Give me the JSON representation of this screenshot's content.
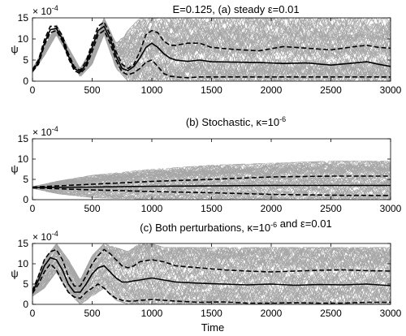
{
  "figure": {
    "xlabel": "Time",
    "colors": {
      "ensemble": "#a6a6a6",
      "mean": "#000000",
      "band": "#000000",
      "axes": "#000000"
    }
  },
  "chart_data": [
    {
      "type": "line",
      "title": "E=0.125, (a) steady ε=0.01",
      "ylabel": "ψ",
      "y_exponent": "× 10^-4",
      "xlim": [
        0,
        3000
      ],
      "ylim": [
        0,
        15
      ],
      "xticks": [
        0,
        500,
        1000,
        1500,
        2000,
        2500,
        3000
      ],
      "yticks": [
        0,
        5,
        10,
        15
      ],
      "ensemble_range": {
        "x": [
          0,
          100,
          200,
          300,
          400,
          500,
          600,
          700,
          800,
          900,
          1000,
          1100,
          1200,
          1300,
          1400,
          1500,
          1700,
          2000,
          2200,
          2500,
          2800,
          3000
        ],
        "low": [
          2,
          6,
          11,
          6,
          1,
          4,
          11,
          3,
          0,
          0,
          0,
          0,
          0,
          0,
          0,
          0,
          0,
          0,
          0,
          0,
          0,
          0
        ],
        "high": [
          3,
          8,
          13.5,
          8,
          3,
          8,
          15,
          9,
          12,
          15,
          15,
          15,
          15,
          15,
          15,
          15,
          15,
          15,
          15,
          15,
          15,
          15
        ]
      },
      "series": [
        {
          "role": "mean",
          "x": [
            0,
            50,
            100,
            150,
            200,
            250,
            300,
            350,
            400,
            450,
            500,
            550,
            600,
            650,
            700,
            750,
            800,
            850,
            900,
            950,
            1000,
            1050,
            1100,
            1150,
            1200,
            1300,
            1400,
            1500,
            1700,
            1900,
            2100,
            2300,
            2500,
            2700,
            2800,
            2900,
            3000
          ],
          "y": [
            2.5,
            4.5,
            9,
            12.2,
            12.5,
            10,
            6,
            3,
            2.2,
            4,
            8,
            12,
            13,
            10,
            6,
            3,
            2.5,
            3.5,
            5.5,
            8,
            9,
            8,
            6.5,
            5.5,
            5,
            4.7,
            5,
            4.6,
            4.5,
            4.4,
            4.2,
            4.3,
            3.8,
            4.3,
            4.6,
            4,
            3.5
          ]
        },
        {
          "role": "upper",
          "x": [
            0,
            50,
            100,
            150,
            200,
            250,
            300,
            350,
            400,
            450,
            500,
            550,
            600,
            650,
            700,
            750,
            800,
            850,
            900,
            950,
            1000,
            1050,
            1100,
            1150,
            1200,
            1300,
            1400,
            1500,
            1700,
            1900,
            2100,
            2300,
            2500,
            2700,
            2800,
            2900,
            3000
          ],
          "y": [
            2.7,
            5,
            9.8,
            13,
            13,
            10.8,
            6.6,
            3.4,
            2.6,
            4.7,
            9,
            13,
            14,
            11,
            7,
            4,
            3,
            4,
            7,
            11,
            12,
            11.5,
            9.5,
            8.5,
            8.5,
            9,
            9,
            8,
            7.5,
            7.2,
            8.2,
            7.8,
            7.4,
            8.2,
            8.5,
            8,
            7.8
          ]
        },
        {
          "role": "lower",
          "x": [
            0,
            50,
            100,
            150,
            200,
            250,
            300,
            350,
            400,
            450,
            500,
            550,
            600,
            650,
            700,
            750,
            800,
            850,
            900,
            950,
            1000,
            1050,
            1100,
            1150,
            1200,
            1300,
            1400,
            1500,
            1700,
            1900,
            2100,
            2300,
            2500,
            2700,
            2800,
            2900,
            3000
          ],
          "y": [
            2.3,
            4,
            8.5,
            11.5,
            12,
            9.5,
            5.5,
            2.5,
            1.8,
            3.3,
            7,
            11,
            12,
            9,
            5,
            2.2,
            1.5,
            2,
            3,
            4.5,
            5,
            3.5,
            1.8,
            1.2,
            1,
            0.8,
            1,
            1,
            1,
            1,
            1,
            1,
            1,
            1,
            1,
            1,
            1
          ]
        }
      ]
    },
    {
      "type": "line",
      "title": "(b) Stochastic, κ=10^-6",
      "ylabel": "ψ",
      "y_exponent": "× 10^-4",
      "xlim": [
        0,
        3000
      ],
      "ylim": [
        0,
        15
      ],
      "xticks": [
        0,
        500,
        1000,
        1500,
        2000,
        2500,
        3000
      ],
      "yticks": [
        0,
        5,
        10,
        15
      ],
      "ensemble_range": {
        "x": [
          0,
          200,
          500,
          1000,
          1500,
          2000,
          2500,
          3000
        ],
        "low": [
          2.8,
          1.5,
          0.5,
          0,
          0,
          0,
          0,
          0
        ],
        "high": [
          3.2,
          4.5,
          6,
          7.5,
          8.5,
          9,
          9.5,
          9.5
        ]
      },
      "series": [
        {
          "role": "mean",
          "x": [
            0,
            500,
            1000,
            1500,
            2000,
            2500,
            3000
          ],
          "y": [
            3,
            3.1,
            3.3,
            3.4,
            3.5,
            3.5,
            3.5
          ]
        },
        {
          "role": "upper",
          "x": [
            0,
            500,
            1000,
            1500,
            2000,
            2500,
            3000
          ],
          "y": [
            3.1,
            3.8,
            4.5,
            5,
            5.6,
            5.8,
            5.8
          ]
        },
        {
          "role": "lower",
          "x": [
            0,
            500,
            1000,
            1500,
            2000,
            2500,
            3000
          ],
          "y": [
            2.9,
            2.4,
            2,
            1.7,
            1.3,
            1.1,
            1
          ]
        }
      ]
    },
    {
      "type": "line",
      "title": "(c) Both perturbations, κ=10^-6 and ε=0.01",
      "ylabel": "ψ",
      "y_exponent": "× 10^-4",
      "xlim": [
        0,
        3000
      ],
      "ylim": [
        0,
        15
      ],
      "xticks": [
        0,
        500,
        1000,
        1500,
        2000,
        2500,
        3000
      ],
      "yticks": [
        0,
        5,
        10,
        15
      ],
      "ensemble_range": {
        "x": [
          0,
          100,
          200,
          300,
          400,
          500,
          600,
          700,
          800,
          900,
          1000,
          1100,
          1300,
          1500,
          1800,
          2000,
          2300,
          2600,
          3000
        ],
        "low": [
          2,
          4,
          8,
          3,
          0,
          2,
          4,
          1,
          0,
          0,
          0,
          0,
          0,
          0,
          0,
          0,
          0,
          0,
          0
        ],
        "high": [
          3.5,
          11,
          15,
          11,
          6,
          12,
          15,
          14,
          13,
          15,
          15,
          14,
          14,
          14,
          14,
          14,
          14,
          14,
          14
        ]
      },
      "series": [
        {
          "role": "mean",
          "x": [
            0,
            50,
            100,
            150,
            200,
            250,
            300,
            350,
            400,
            450,
            500,
            550,
            600,
            650,
            700,
            750,
            800,
            850,
            900,
            1000,
            1100,
            1200,
            1400,
            1600,
            1800,
            2000,
            2200,
            2400,
            2600,
            2800,
            3000
          ],
          "y": [
            3,
            6,
            9.5,
            11.5,
            11,
            8.5,
            5,
            3,
            3,
            5,
            7.5,
            9,
            9.5,
            8,
            6.5,
            5.5,
            5.5,
            5.8,
            6,
            6.5,
            6,
            5.5,
            5.2,
            5,
            4.8,
            5,
            4.7,
            4.9,
            4.8,
            5,
            4.6
          ]
        },
        {
          "role": "upper",
          "x": [
            0,
            50,
            100,
            150,
            200,
            250,
            300,
            350,
            400,
            450,
            500,
            550,
            600,
            650,
            700,
            750,
            800,
            850,
            900,
            1000,
            1100,
            1200,
            1400,
            1600,
            1800,
            2000,
            2200,
            2400,
            2600,
            2800,
            3000
          ],
          "y": [
            3.3,
            7,
            11,
            13,
            13.5,
            11,
            7,
            4.5,
            4.5,
            7,
            10,
            12,
            13.5,
            12.5,
            11,
            9.5,
            9,
            9.5,
            10.5,
            11,
            10.5,
            9.5,
            9,
            8.5,
            8.2,
            8,
            8.2,
            8.4,
            8.5,
            8.3,
            8.2
          ]
        },
        {
          "role": "lower",
          "x": [
            0,
            50,
            100,
            150,
            200,
            250,
            300,
            350,
            400,
            450,
            500,
            550,
            600,
            650,
            700,
            750,
            800,
            850,
            900,
            1000,
            1100,
            1200,
            1400,
            1600,
            1800,
            2000,
            2200,
            2400,
            2600,
            2800,
            3000
          ],
          "y": [
            2.7,
            5,
            8,
            10,
            8.5,
            5.5,
            3,
            1.8,
            1.5,
            3,
            4,
            5,
            4,
            2.5,
            1.5,
            1,
            0.8,
            0.8,
            1,
            1.2,
            1,
            0.8,
            0.5,
            0.6,
            0.3,
            0.3,
            0.4,
            0.3,
            0.3,
            0.5,
            0.5
          ]
        }
      ]
    }
  ]
}
